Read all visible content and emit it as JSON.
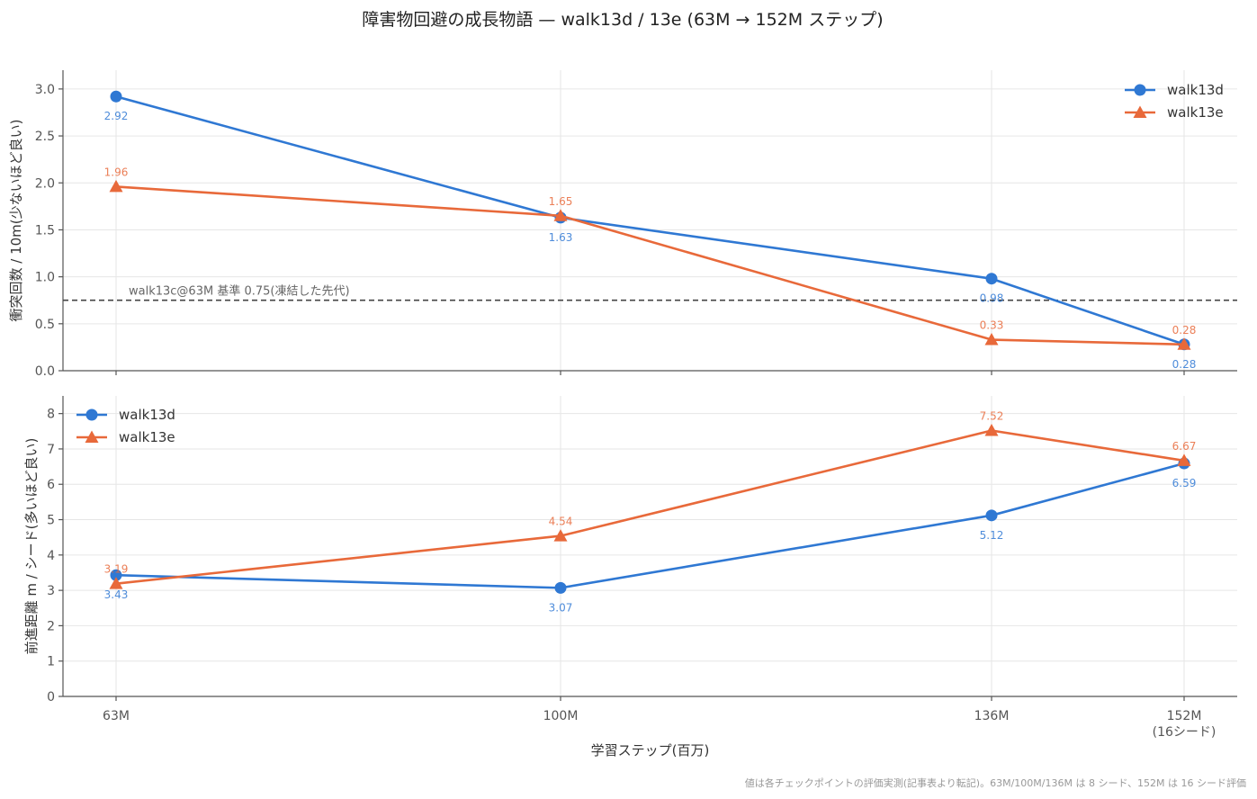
{
  "title": "障害物回避の成長物語 — walk13d / 13e (63M → 152M ステップ)",
  "footnote": "値は各チェックポイントの評価実測(記事表より転記)。63M/100M/136M は 8 シード、152M は 16 シード評価",
  "colors": {
    "walk13d": "#2f78d3",
    "walk13e": "#e8693a",
    "reference": "#444444"
  },
  "chart_data": [
    {
      "type": "line",
      "x": [
        63,
        100,
        136,
        152
      ],
      "xticklabels": [
        "63M",
        "100M",
        "136M",
        "152M\n(16シード)"
      ],
      "xlabel": "",
      "ylabel": "衝突回数 / 10m(少ないほど良い)",
      "ylim": [
        0,
        3.2
      ],
      "yticks": [
        0.0,
        0.5,
        1.0,
        1.5,
        2.0,
        2.5,
        3.0
      ],
      "yticklabels": [
        "0.0",
        "0.5",
        "1.0",
        "1.5",
        "2.0",
        "2.5",
        "3.0"
      ],
      "grid": true,
      "legend": "top-right",
      "reference_line": {
        "y": 0.75,
        "label": "walk13c@63M 基準 0.75(凍結した先代)"
      },
      "series": [
        {
          "name": "walk13d",
          "marker": "circle",
          "values": [
            2.92,
            1.63,
            0.98,
            0.28
          ],
          "labels": [
            "2.92",
            "1.63",
            "0.98",
            "0.28"
          ],
          "label_pos": [
            "below",
            "below",
            "below",
            "below"
          ]
        },
        {
          "name": "walk13e",
          "marker": "triangle",
          "values": [
            1.96,
            1.65,
            0.33,
            0.28
          ],
          "labels": [
            "1.96",
            "1.65",
            "0.33",
            "0.28"
          ],
          "label_pos": [
            "above",
            "above",
            "above",
            "above"
          ]
        }
      ]
    },
    {
      "type": "line",
      "x": [
        63,
        100,
        136,
        152
      ],
      "xticklabels": [
        "63M",
        "100M",
        "136M",
        "152M\n(16シード)"
      ],
      "xlabel": "学習ステップ(百万)",
      "ylabel": "前進距離 m / シード(多いほど良い)",
      "ylim": [
        0,
        8.5
      ],
      "yticks": [
        0,
        1,
        2,
        3,
        4,
        5,
        6,
        7,
        8
      ],
      "yticklabels": [
        "0",
        "1",
        "2",
        "3",
        "4",
        "5",
        "6",
        "7",
        "8"
      ],
      "grid": true,
      "legend": "top-left",
      "series": [
        {
          "name": "walk13d",
          "marker": "circle",
          "values": [
            3.43,
            3.07,
            5.12,
            6.59
          ],
          "labels": [
            "3.43",
            "3.07",
            "5.12",
            "6.59"
          ],
          "label_pos": [
            "below",
            "below",
            "below",
            "below"
          ]
        },
        {
          "name": "walk13e",
          "marker": "triangle",
          "values": [
            3.19,
            4.54,
            7.52,
            6.67
          ],
          "labels": [
            "3.19",
            "4.54",
            "7.52",
            "6.67"
          ],
          "label_pos": [
            "above",
            "above",
            "above",
            "above"
          ]
        }
      ]
    }
  ]
}
